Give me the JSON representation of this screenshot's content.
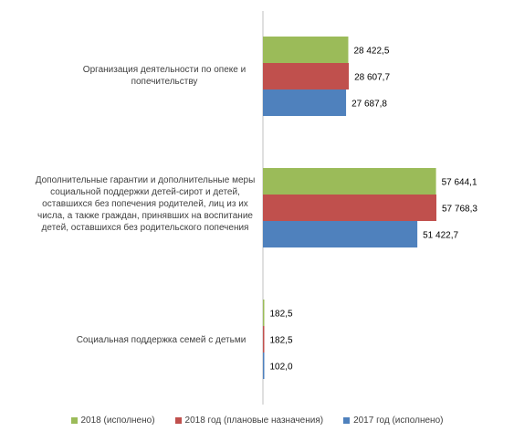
{
  "chart_data": {
    "type": "bar",
    "orientation": "horizontal",
    "categories": [
      "Организация деятельности по опеке и попечительству",
      "Дополнительные гарантии и дополнительные меры социальной поддержки детей-сирот и детей, оставшихся без попечения родителей, лиц из их числа, а также граждан, принявших на воспитание детей, оставшихся без родительского попечения",
      "Социальная поддержка семей с детьми"
    ],
    "series": [
      {
        "name": "2018 (исполнено)",
        "color": "#9bbb59",
        "values": [
          28422.5,
          57644.1,
          182.5
        ],
        "labels": [
          "28 422,5",
          "57 644,1",
          "182,5"
        ]
      },
      {
        "name": "2018 год (плановые назначения)",
        "color": "#c0504d",
        "values": [
          28607.7,
          57768.3,
          182.5
        ],
        "labels": [
          "28 607,7",
          "57 768,3",
          "182,5"
        ]
      },
      {
        "name": "2017 год (исполнено)",
        "color": "#4f81bd",
        "values": [
          27687.8,
          51422.7,
          102.0
        ],
        "labels": [
          "27 687,8",
          "51 422,7",
          "102,0"
        ]
      }
    ],
    "xlim": [
      0,
      70000
    ],
    "grid": false,
    "legend_position": "bottom"
  }
}
